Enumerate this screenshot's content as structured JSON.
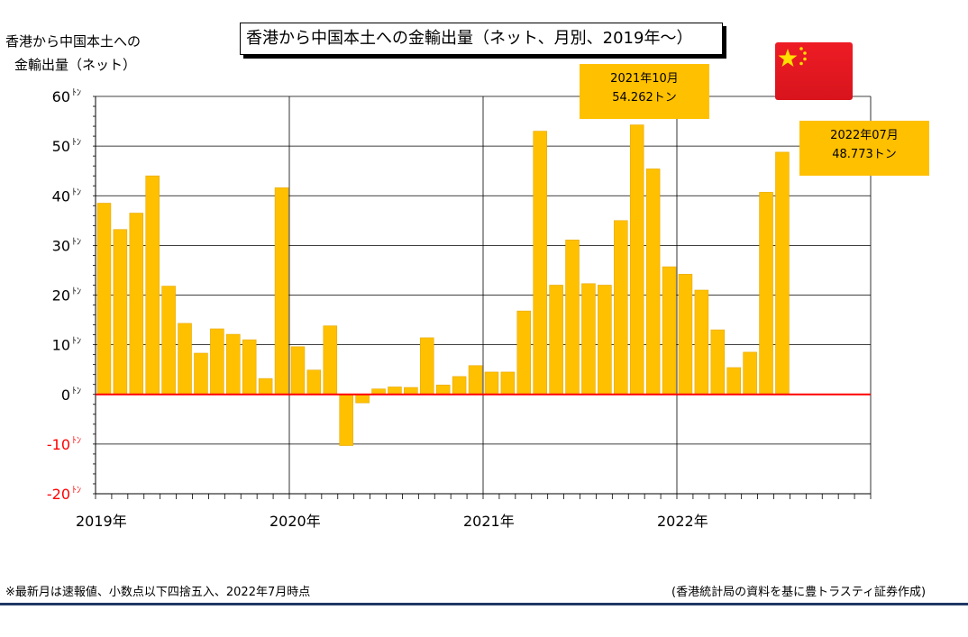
{
  "header": {
    "title": "香港から中国本土への金輸出量（ネット、月別、2019年～）",
    "ylabel_line1": "香港から中国本土への",
    "ylabel_line2": "金輸出量（ネット）"
  },
  "callouts": [
    {
      "line1": "2021年10月",
      "line2": "54.262トン"
    },
    {
      "line1": "2022年07月",
      "line2": "48.773トン"
    }
  ],
  "footer": {
    "note": "※最新月は速報値、小数点以下四捨五入、2022年7月時点",
    "source": "(香港統計局の資料を基に豊トラスティ証券作成)"
  },
  "flag": {
    "name": "china-flag-icon",
    "red": "#ee1c25",
    "yellow": "#ffde00"
  },
  "colors": {
    "bar": "#ffc000",
    "bar_edge": "#e6a800",
    "zero_line": "#ff0000",
    "negative_tick": "#ff0000"
  },
  "chart_data": {
    "type": "bar",
    "title": "香港から中国本土への金輸出量（ネット、月別、2019年～）",
    "ylabel": "香港から中国本土への金輸出量（ネット）",
    "ylim": [
      -20,
      60
    ],
    "yticks": [
      60,
      50,
      40,
      30,
      20,
      10,
      0,
      -10,
      -20
    ],
    "ytick_labels": [
      "60ﾄﾝ",
      "50ﾄﾝ",
      "40ﾄﾝ",
      "30ﾄﾝ",
      "20ﾄﾝ",
      "10ﾄﾝ",
      "0ﾄﾝ",
      "-10ﾄﾝ",
      "-20ﾄﾝ"
    ],
    "xtick_labels": [
      "2019年",
      "2020年",
      "2021年",
      "2022年"
    ],
    "categories": [
      "2019-01",
      "2019-02",
      "2019-03",
      "2019-04",
      "2019-05",
      "2019-06",
      "2019-07",
      "2019-08",
      "2019-09",
      "2019-10",
      "2019-11",
      "2019-12",
      "2020-01",
      "2020-02",
      "2020-03",
      "2020-04",
      "2020-05",
      "2020-06",
      "2020-07",
      "2020-08",
      "2020-09",
      "2020-10",
      "2020-11",
      "2020-12",
      "2021-01",
      "2021-02",
      "2021-03",
      "2021-04",
      "2021-05",
      "2021-06",
      "2021-07",
      "2021-08",
      "2021-09",
      "2021-10",
      "2021-11",
      "2021-12",
      "2022-01",
      "2022-02",
      "2022-03",
      "2022-04",
      "2022-05",
      "2022-06",
      "2022-07"
    ],
    "values": [
      38.5,
      33.2,
      36.5,
      44.0,
      21.8,
      14.3,
      8.3,
      13.2,
      12.1,
      11.0,
      3.2,
      41.6,
      9.6,
      4.9,
      13.8,
      -10.3,
      -1.7,
      1.1,
      1.5,
      1.4,
      11.4,
      1.9,
      3.6,
      5.8,
      4.5,
      4.5,
      16.8,
      53.0,
      22.0,
      31.1,
      22.3,
      22.0,
      35.0,
      54.262,
      45.4,
      25.7,
      24.2,
      21.0,
      13.0,
      5.4,
      8.5,
      40.7,
      48.773
    ],
    "grid": true,
    "legend": "none"
  }
}
